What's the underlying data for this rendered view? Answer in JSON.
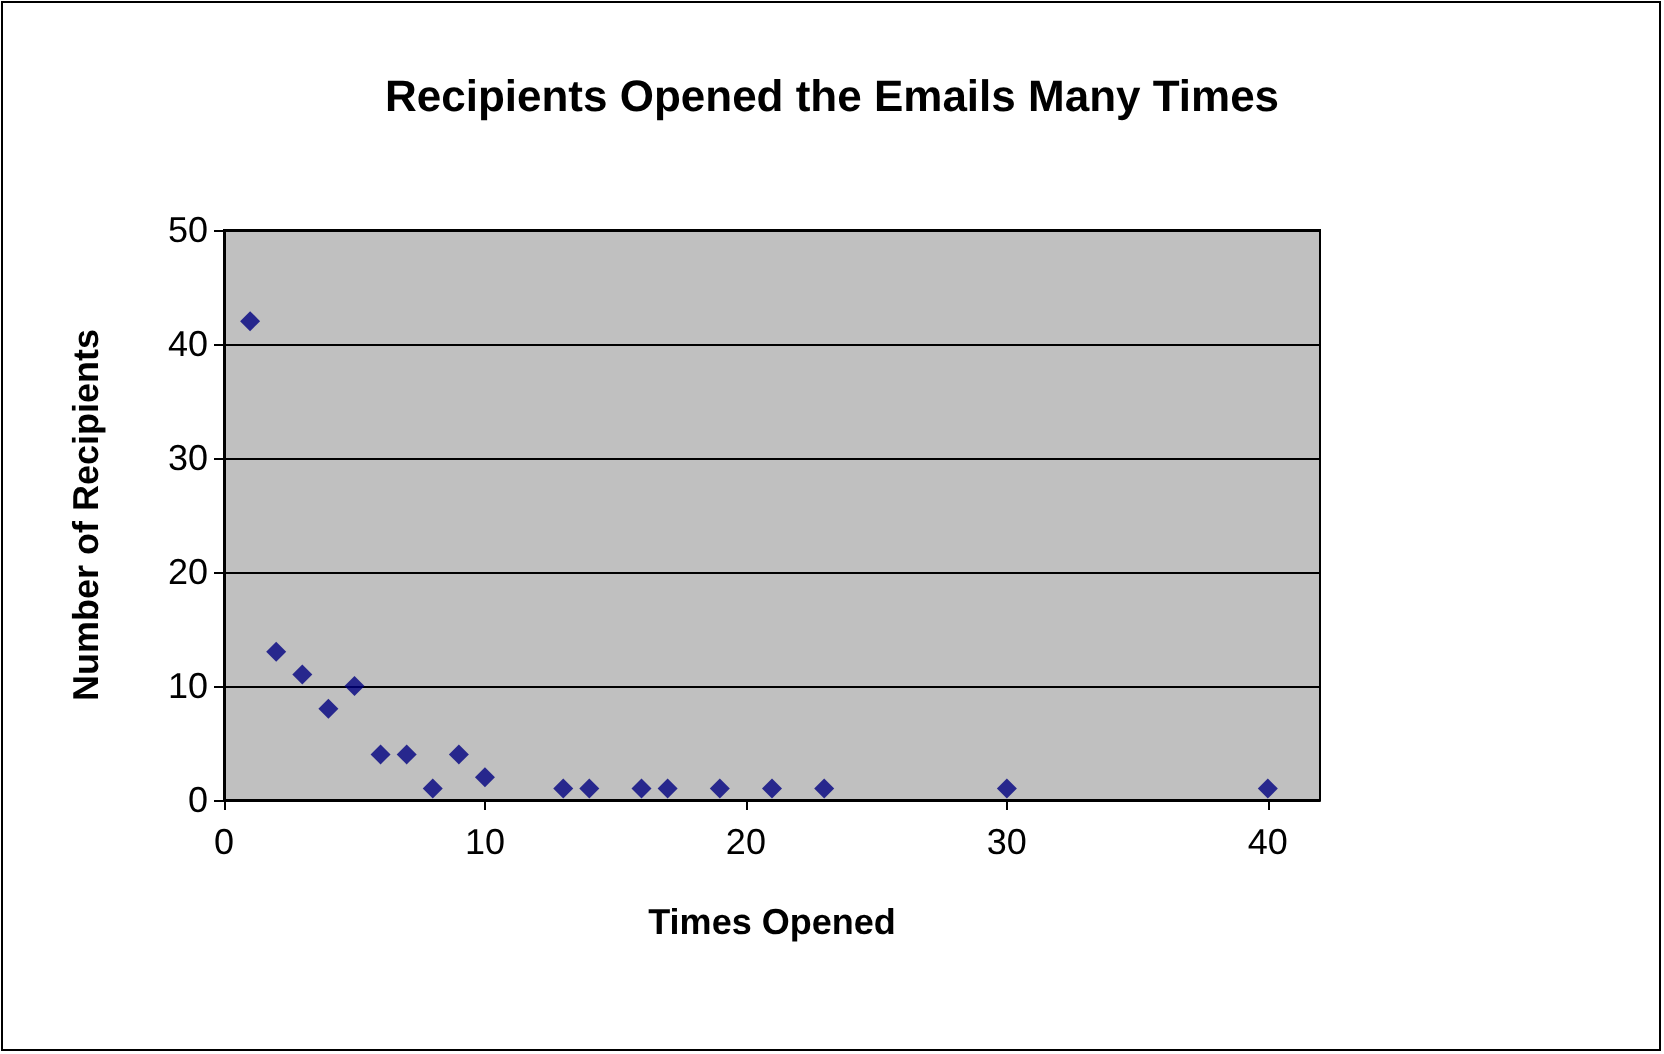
{
  "chart_data": {
    "type": "scatter",
    "title": "Recipients Opened the Emails Many Times",
    "xlabel": "Times Opened",
    "ylabel": "Number of Recipients",
    "x": [
      1,
      2,
      3,
      4,
      5,
      6,
      7,
      8,
      9,
      10,
      13,
      14,
      16,
      17,
      19,
      21,
      23,
      30,
      40
    ],
    "series": [
      {
        "color": "#000080",
        "values": [
          42,
          13,
          11,
          8,
          10,
          4,
          4,
          1,
          4,
          2,
          1,
          1,
          1,
          1,
          1,
          1,
          1,
          1,
          1
        ]
      }
    ],
    "xlim": [
      0,
      42
    ],
    "xticks": [
      0,
      10,
      20,
      30,
      40
    ],
    "ylim": [
      0,
      50
    ],
    "yticks": [
      0,
      10,
      20,
      30,
      40,
      50
    ],
    "grid": "y",
    "marker": "diamond"
  }
}
